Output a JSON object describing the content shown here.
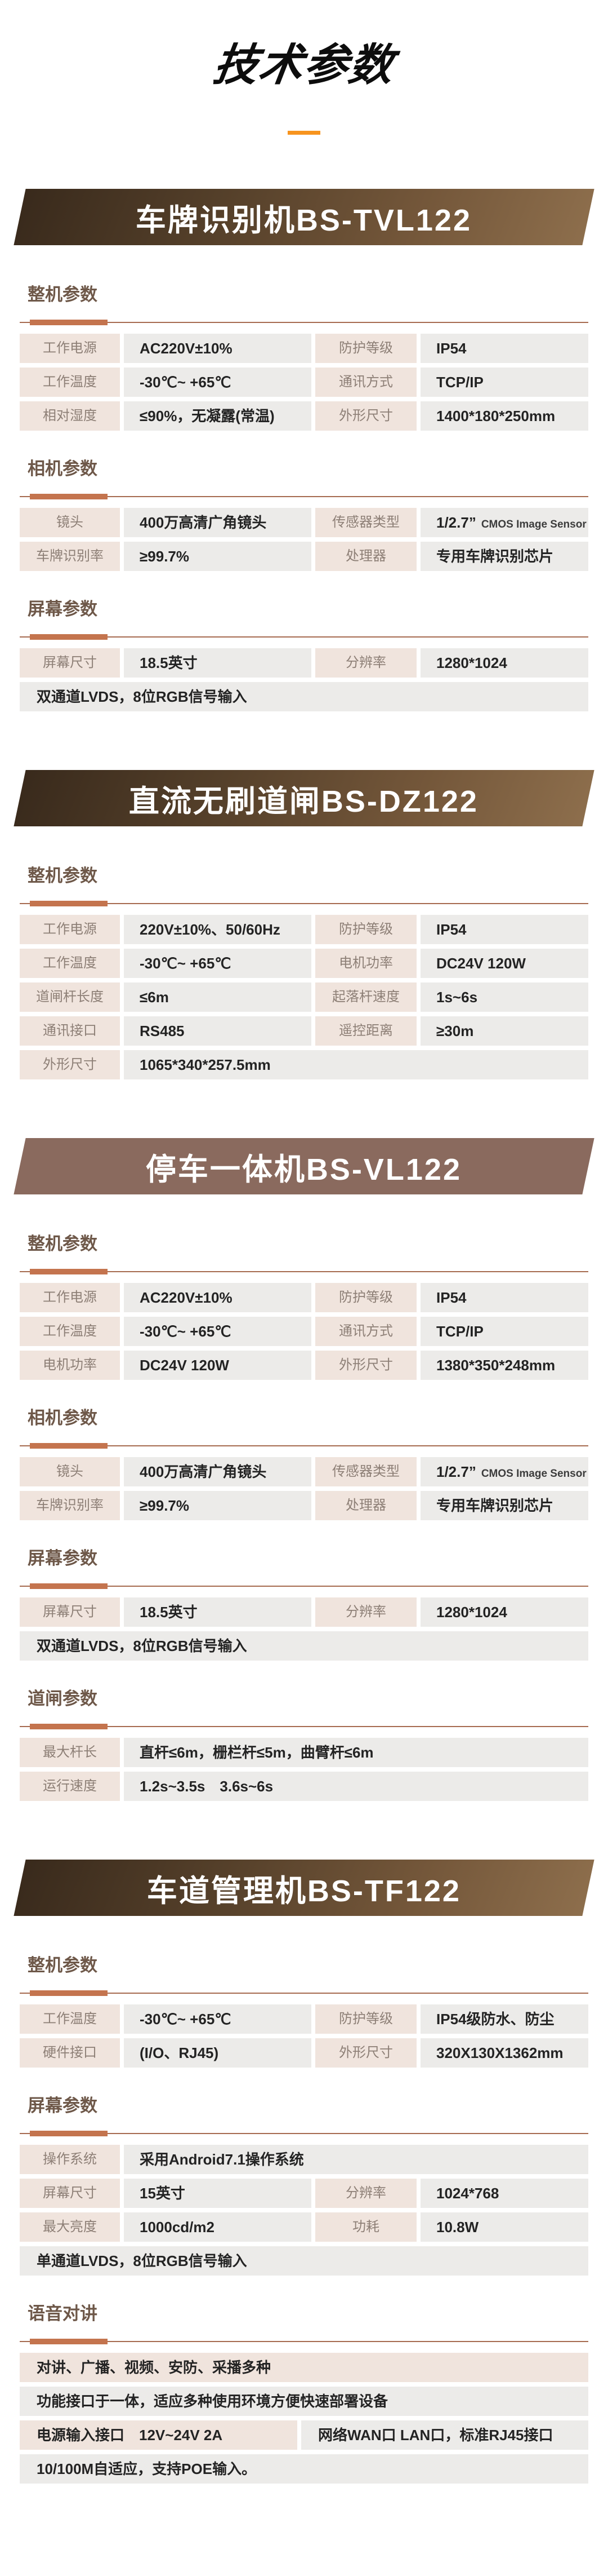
{
  "page": {
    "title": "技术参数",
    "colors": {
      "title_dash": "#F7941E",
      "divider_line": "#A66B50",
      "divider_accent": "#C4744E",
      "label_cell_bg": "#F0E4DD",
      "value_cell_bg": "#ECEBE9",
      "section_title": "#6E5849",
      "banner_flat": "#8A6A5E",
      "banner_gradient_start": "#392a1c",
      "banner_gradient_end": "#8d6e4c"
    }
  },
  "products": [
    {
      "banner": "车牌识别机BS-TVL122",
      "banner_variant": "gradient",
      "sections": [
        {
          "title": "整机参数",
          "rows": [
            {
              "type": "pair2",
              "cells": [
                {
                  "label": "工作电源",
                  "value": "AC220V±10%"
                },
                {
                  "label": "防护等级",
                  "value": "IP54"
                }
              ]
            },
            {
              "type": "pair2",
              "cells": [
                {
                  "label": "工作温度",
                  "value": "-30℃~ +65℃"
                },
                {
                  "label": "通讯方式",
                  "value": "TCP/IP"
                }
              ]
            },
            {
              "type": "pair2",
              "cells": [
                {
                  "label": "相对湿度",
                  "value": "≤90%，无凝露(常温)"
                },
                {
                  "label": "外形尺寸",
                  "value": "1400*180*250mm"
                }
              ]
            }
          ]
        },
        {
          "title": "相机参数",
          "rows": [
            {
              "type": "pair2",
              "cells": [
                {
                  "label": "镜头",
                  "value": "400万高清广角镜头"
                },
                {
                  "label": "传感器类型",
                  "value": "1/2.7”",
                  "value_note": "CMOS Image Sensor"
                }
              ]
            },
            {
              "type": "pair2",
              "cells": [
                {
                  "label": "车牌识别率",
                  "value": "≥99.7%"
                },
                {
                  "label": "处理器",
                  "value": "专用车牌识别芯片"
                }
              ]
            }
          ]
        },
        {
          "title": "屏幕参数",
          "rows": [
            {
              "type": "pair2",
              "cells": [
                {
                  "label": "屏幕尺寸",
                  "value": "18.5英寸"
                },
                {
                  "label": "分辨率",
                  "value": "1280*1024"
                }
              ]
            },
            {
              "type": "full",
              "tone": "gray",
              "text": "双通道LVDS，8位RGB信号输入"
            }
          ]
        }
      ]
    },
    {
      "banner": "直流无刷道闸BS-DZ122",
      "banner_variant": "gradient",
      "sections": [
        {
          "title": "整机参数",
          "rows": [
            {
              "type": "pair2",
              "cells": [
                {
                  "label": "工作电源",
                  "value": "220V±10%、50/60Hz"
                },
                {
                  "label": "防护等级",
                  "value": "IP54"
                }
              ]
            },
            {
              "type": "pair2",
              "cells": [
                {
                  "label": "工作温度",
                  "value": "-30℃~ +65℃"
                },
                {
                  "label": "电机功率",
                  "value": "DC24V 120W"
                }
              ]
            },
            {
              "type": "pair2",
              "cells": [
                {
                  "label": "道闸杆长度",
                  "value": "≤6m"
                },
                {
                  "label": "起落杆速度",
                  "value": "1s~6s"
                }
              ]
            },
            {
              "type": "pair2",
              "cells": [
                {
                  "label": "通讯接口",
                  "value": "RS485"
                },
                {
                  "label": "遥控距离",
                  "value": "≥30m"
                }
              ]
            },
            {
              "type": "labelwide",
              "label": "外形尺寸",
              "value": "1065*340*257.5mm"
            }
          ]
        }
      ]
    },
    {
      "banner": "停车一体机BS-VL122",
      "banner_variant": "flat",
      "sections": [
        {
          "title": "整机参数",
          "rows": [
            {
              "type": "pair2",
              "cells": [
                {
                  "label": "工作电源",
                  "value": "AC220V±10%"
                },
                {
                  "label": "防护等级",
                  "value": "IP54"
                }
              ]
            },
            {
              "type": "pair2",
              "cells": [
                {
                  "label": "工作温度",
                  "value": "-30℃~ +65℃"
                },
                {
                  "label": "通讯方式",
                  "value": "TCP/IP"
                }
              ]
            },
            {
              "type": "pair2",
              "cells": [
                {
                  "label": "电机功率",
                  "value": "DC24V 120W"
                },
                {
                  "label": "外形尺寸",
                  "value": "1380*350*248mm"
                }
              ]
            }
          ]
        },
        {
          "title": "相机参数",
          "rows": [
            {
              "type": "pair2",
              "cells": [
                {
                  "label": "镜头",
                  "value": "400万高清广角镜头"
                },
                {
                  "label": "传感器类型",
                  "value": "1/2.7”",
                  "value_note": "CMOS Image Sensor"
                }
              ]
            },
            {
              "type": "pair2",
              "cells": [
                {
                  "label": "车牌识别率",
                  "value": "≥99.7%"
                },
                {
                  "label": "处理器",
                  "value": "专用车牌识别芯片"
                }
              ]
            }
          ]
        },
        {
          "title": "屏幕参数",
          "rows": [
            {
              "type": "pair2",
              "cells": [
                {
                  "label": "屏幕尺寸",
                  "value": "18.5英寸"
                },
                {
                  "label": "分辨率",
                  "value": "1280*1024"
                }
              ]
            },
            {
              "type": "full",
              "tone": "gray",
              "text": "双通道LVDS，8位RGB信号输入"
            }
          ]
        },
        {
          "title": "道闸参数",
          "rows": [
            {
              "type": "labelwide",
              "label": "最大杆长",
              "value": "直杆≤6m，栅栏杆≤5m，曲臂杆≤6m"
            },
            {
              "type": "labelwide",
              "label": "运行速度",
              "value": "1.2s~3.5s　3.6s~6s"
            }
          ]
        }
      ]
    },
    {
      "banner": "车道管理机BS-TF122",
      "banner_variant": "gradient",
      "sections": [
        {
          "title": "整机参数",
          "rows": [
            {
              "type": "pair2",
              "cells": [
                {
                  "label": "工作温度",
                  "value": "-30℃~ +65℃"
                },
                {
                  "label": "防护等级",
                  "value": "IP54级防水、防尘"
                }
              ]
            },
            {
              "type": "pair2",
              "cells": [
                {
                  "label": "硬件接口",
                  "value": "(I/O、RJ45)"
                },
                {
                  "label": "外形尺寸",
                  "value": "320X130X1362mm"
                }
              ]
            }
          ]
        },
        {
          "title": "屏幕参数",
          "rows": [
            {
              "type": "labelwide",
              "label": "操作系统",
              "value": "采用Android7.1操作系统"
            },
            {
              "type": "pair2",
              "cells": [
                {
                  "label": "屏幕尺寸",
                  "value": "15英寸"
                },
                {
                  "label": "分辨率",
                  "value": "1024*768"
                }
              ]
            },
            {
              "type": "pair2",
              "cells": [
                {
                  "label": "最大亮度",
                  "value": "1000cd/m2"
                },
                {
                  "label": "功耗",
                  "value": "10.8W"
                }
              ]
            },
            {
              "type": "full",
              "tone": "gray",
              "text": "单通道LVDS，8位RGB信号输入"
            }
          ]
        },
        {
          "title": "语音对讲",
          "rows": [
            {
              "type": "full",
              "tone": "pink",
              "text": "对讲、广播、视频、安防、采播多种"
            },
            {
              "type": "full",
              "tone": "gray",
              "text": "功能接口于一体，适应多种使用环境方便快速部署设备"
            },
            {
              "type": "half2",
              "cells": [
                {
                  "tone": "pink",
                  "text": "电源输入接口　12V~24V 2A"
                },
                {
                  "tone": "gray",
                  "text": "网络WAN口 LAN口，标准RJ45接口"
                }
              ]
            },
            {
              "type": "full",
              "tone": "gray",
              "text": "10/100M自适应，支持POE输入。"
            }
          ]
        }
      ]
    }
  ]
}
